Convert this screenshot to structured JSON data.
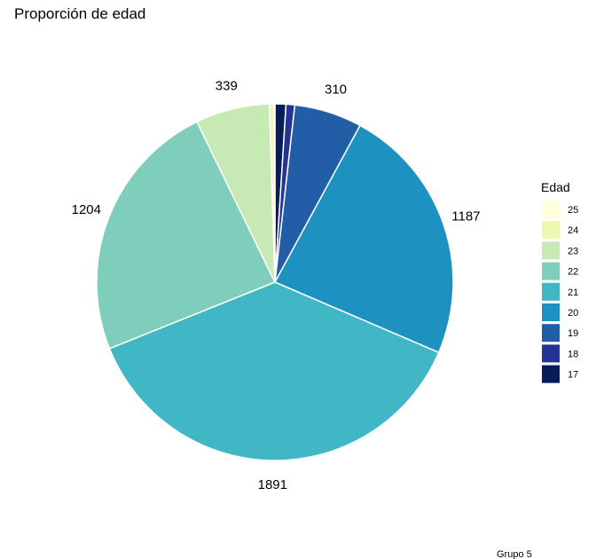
{
  "chart_data": {
    "type": "pie",
    "title": "Proporción de edad",
    "caption": "Grupo 5",
    "legend": {
      "title": "Edad",
      "placement": "right"
    },
    "slices": [
      {
        "category": "17",
        "value": 50,
        "color": "#081d58",
        "label": ""
      },
      {
        "category": "18",
        "value": 40,
        "color": "#253494",
        "label": ""
      },
      {
        "category": "19",
        "value": 310,
        "color": "#225ea8",
        "label": "310"
      },
      {
        "category": "20",
        "value": 1187,
        "color": "#1d91c0",
        "label": "1187"
      },
      {
        "category": "21",
        "value": 1891,
        "color": "#41b6c4",
        "label": "1891"
      },
      {
        "category": "22",
        "value": 1204,
        "color": "#7fcdbb",
        "label": "1204"
      },
      {
        "category": "23",
        "value": 339,
        "color": "#c7e9b4",
        "label": "339"
      },
      {
        "category": "24",
        "value": 20,
        "color": "#edf8b1",
        "label": ""
      },
      {
        "category": "25",
        "value": 5,
        "color": "#ffffd9",
        "label": ""
      }
    ]
  }
}
